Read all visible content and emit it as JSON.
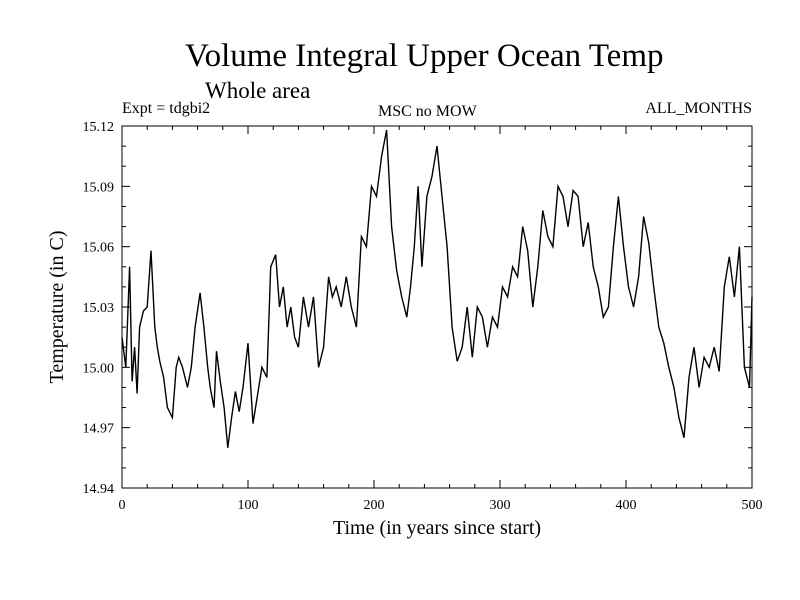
{
  "chart_data": {
    "type": "line",
    "title": "Volume Integral Upper Ocean Temp",
    "subtitle": "Whole area",
    "annotations": {
      "expt": "Expt = tdgbi2",
      "center": "MSC no MOW",
      "right": "ALL_MONTHS"
    },
    "xlabel": "Time (in years since start)",
    "ylabel": "Temperature (in C)",
    "xlim": [
      0,
      500
    ],
    "ylim": [
      14.94,
      15.12
    ],
    "x_ticks": [
      0,
      100,
      200,
      300,
      400,
      500
    ],
    "x_tick_labels": [
      "0",
      "100",
      "200",
      "300",
      "400",
      "500"
    ],
    "y_ticks": [
      14.94,
      14.97,
      15.0,
      15.03,
      15.06,
      15.09,
      15.12
    ],
    "y_tick_labels": [
      "14.94",
      "14.97",
      "15.00",
      "15.03",
      "15.06",
      "15.09",
      "15.12"
    ],
    "grid": false,
    "series": [
      {
        "x": [
          0,
          3,
          6,
          8,
          10,
          12,
          14,
          17,
          20,
          23,
          26,
          28,
          30,
          33,
          36,
          40,
          43,
          45,
          48,
          52,
          55,
          58,
          62,
          65,
          68,
          70,
          73,
          75,
          78,
          81,
          84,
          87,
          90,
          93,
          96,
          100,
          104,
          108,
          111,
          115,
          118,
          122,
          125,
          128,
          131,
          134,
          137,
          140,
          144,
          148,
          152,
          156,
          160,
          164,
          167,
          170,
          174,
          178,
          182,
          186,
          190,
          194,
          198,
          202,
          206,
          210,
          214,
          218,
          222,
          226,
          229,
          232,
          235,
          238,
          242,
          246,
          250,
          254,
          258,
          262,
          266,
          270,
          274,
          278,
          282,
          286,
          290,
          294,
          298,
          302,
          306,
          310,
          314,
          318,
          322,
          326,
          330,
          334,
          338,
          342,
          346,
          350,
          354,
          358,
          362,
          366,
          370,
          374,
          378,
          382,
          386,
          390,
          394,
          398,
          402,
          406,
          410,
          414,
          418,
          422,
          426,
          430,
          434,
          438,
          442,
          446,
          450,
          454,
          458,
          462,
          466,
          470,
          474,
          478,
          482,
          486,
          490,
          494,
          498,
          500
        ],
        "y": [
          15.015,
          15.0,
          15.05,
          14.993,
          15.01,
          14.987,
          15.02,
          15.028,
          15.03,
          15.058,
          15.02,
          15.01,
          15.003,
          14.995,
          14.98,
          14.975,
          15.0,
          15.005,
          15.0,
          14.99,
          15.0,
          15.02,
          15.037,
          15.02,
          15.0,
          14.99,
          14.98,
          15.008,
          14.993,
          14.98,
          14.96,
          14.975,
          14.988,
          14.978,
          14.99,
          15.012,
          14.972,
          14.988,
          15.0,
          14.995,
          15.05,
          15.056,
          15.03,
          15.04,
          15.02,
          15.03,
          15.015,
          15.01,
          15.035,
          15.02,
          15.035,
          15.0,
          15.01,
          15.045,
          15.035,
          15.04,
          15.03,
          15.045,
          15.03,
          15.02,
          15.065,
          15.06,
          15.09,
          15.085,
          15.105,
          15.118,
          15.07,
          15.048,
          15.035,
          15.025,
          15.04,
          15.06,
          15.09,
          15.05,
          15.085,
          15.095,
          15.11,
          15.085,
          15.06,
          15.02,
          15.003,
          15.01,
          15.03,
          15.005,
          15.03,
          15.025,
          15.01,
          15.025,
          15.02,
          15.04,
          15.035,
          15.05,
          15.045,
          15.07,
          15.058,
          15.03,
          15.05,
          15.078,
          15.065,
          15.06,
          15.09,
          15.085,
          15.07,
          15.088,
          15.085,
          15.06,
          15.072,
          15.05,
          15.04,
          15.025,
          15.03,
          15.06,
          15.085,
          15.06,
          15.04,
          15.03,
          15.045,
          15.075,
          15.062,
          15.04,
          15.02,
          15.012,
          15.0,
          14.99,
          14.975,
          14.965,
          14.995,
          15.01,
          14.99,
          15.005,
          15.0,
          15.01,
          14.998,
          15.04,
          15.055,
          15.035,
          15.06,
          15.0,
          14.99,
          15.035
        ]
      }
    ]
  }
}
